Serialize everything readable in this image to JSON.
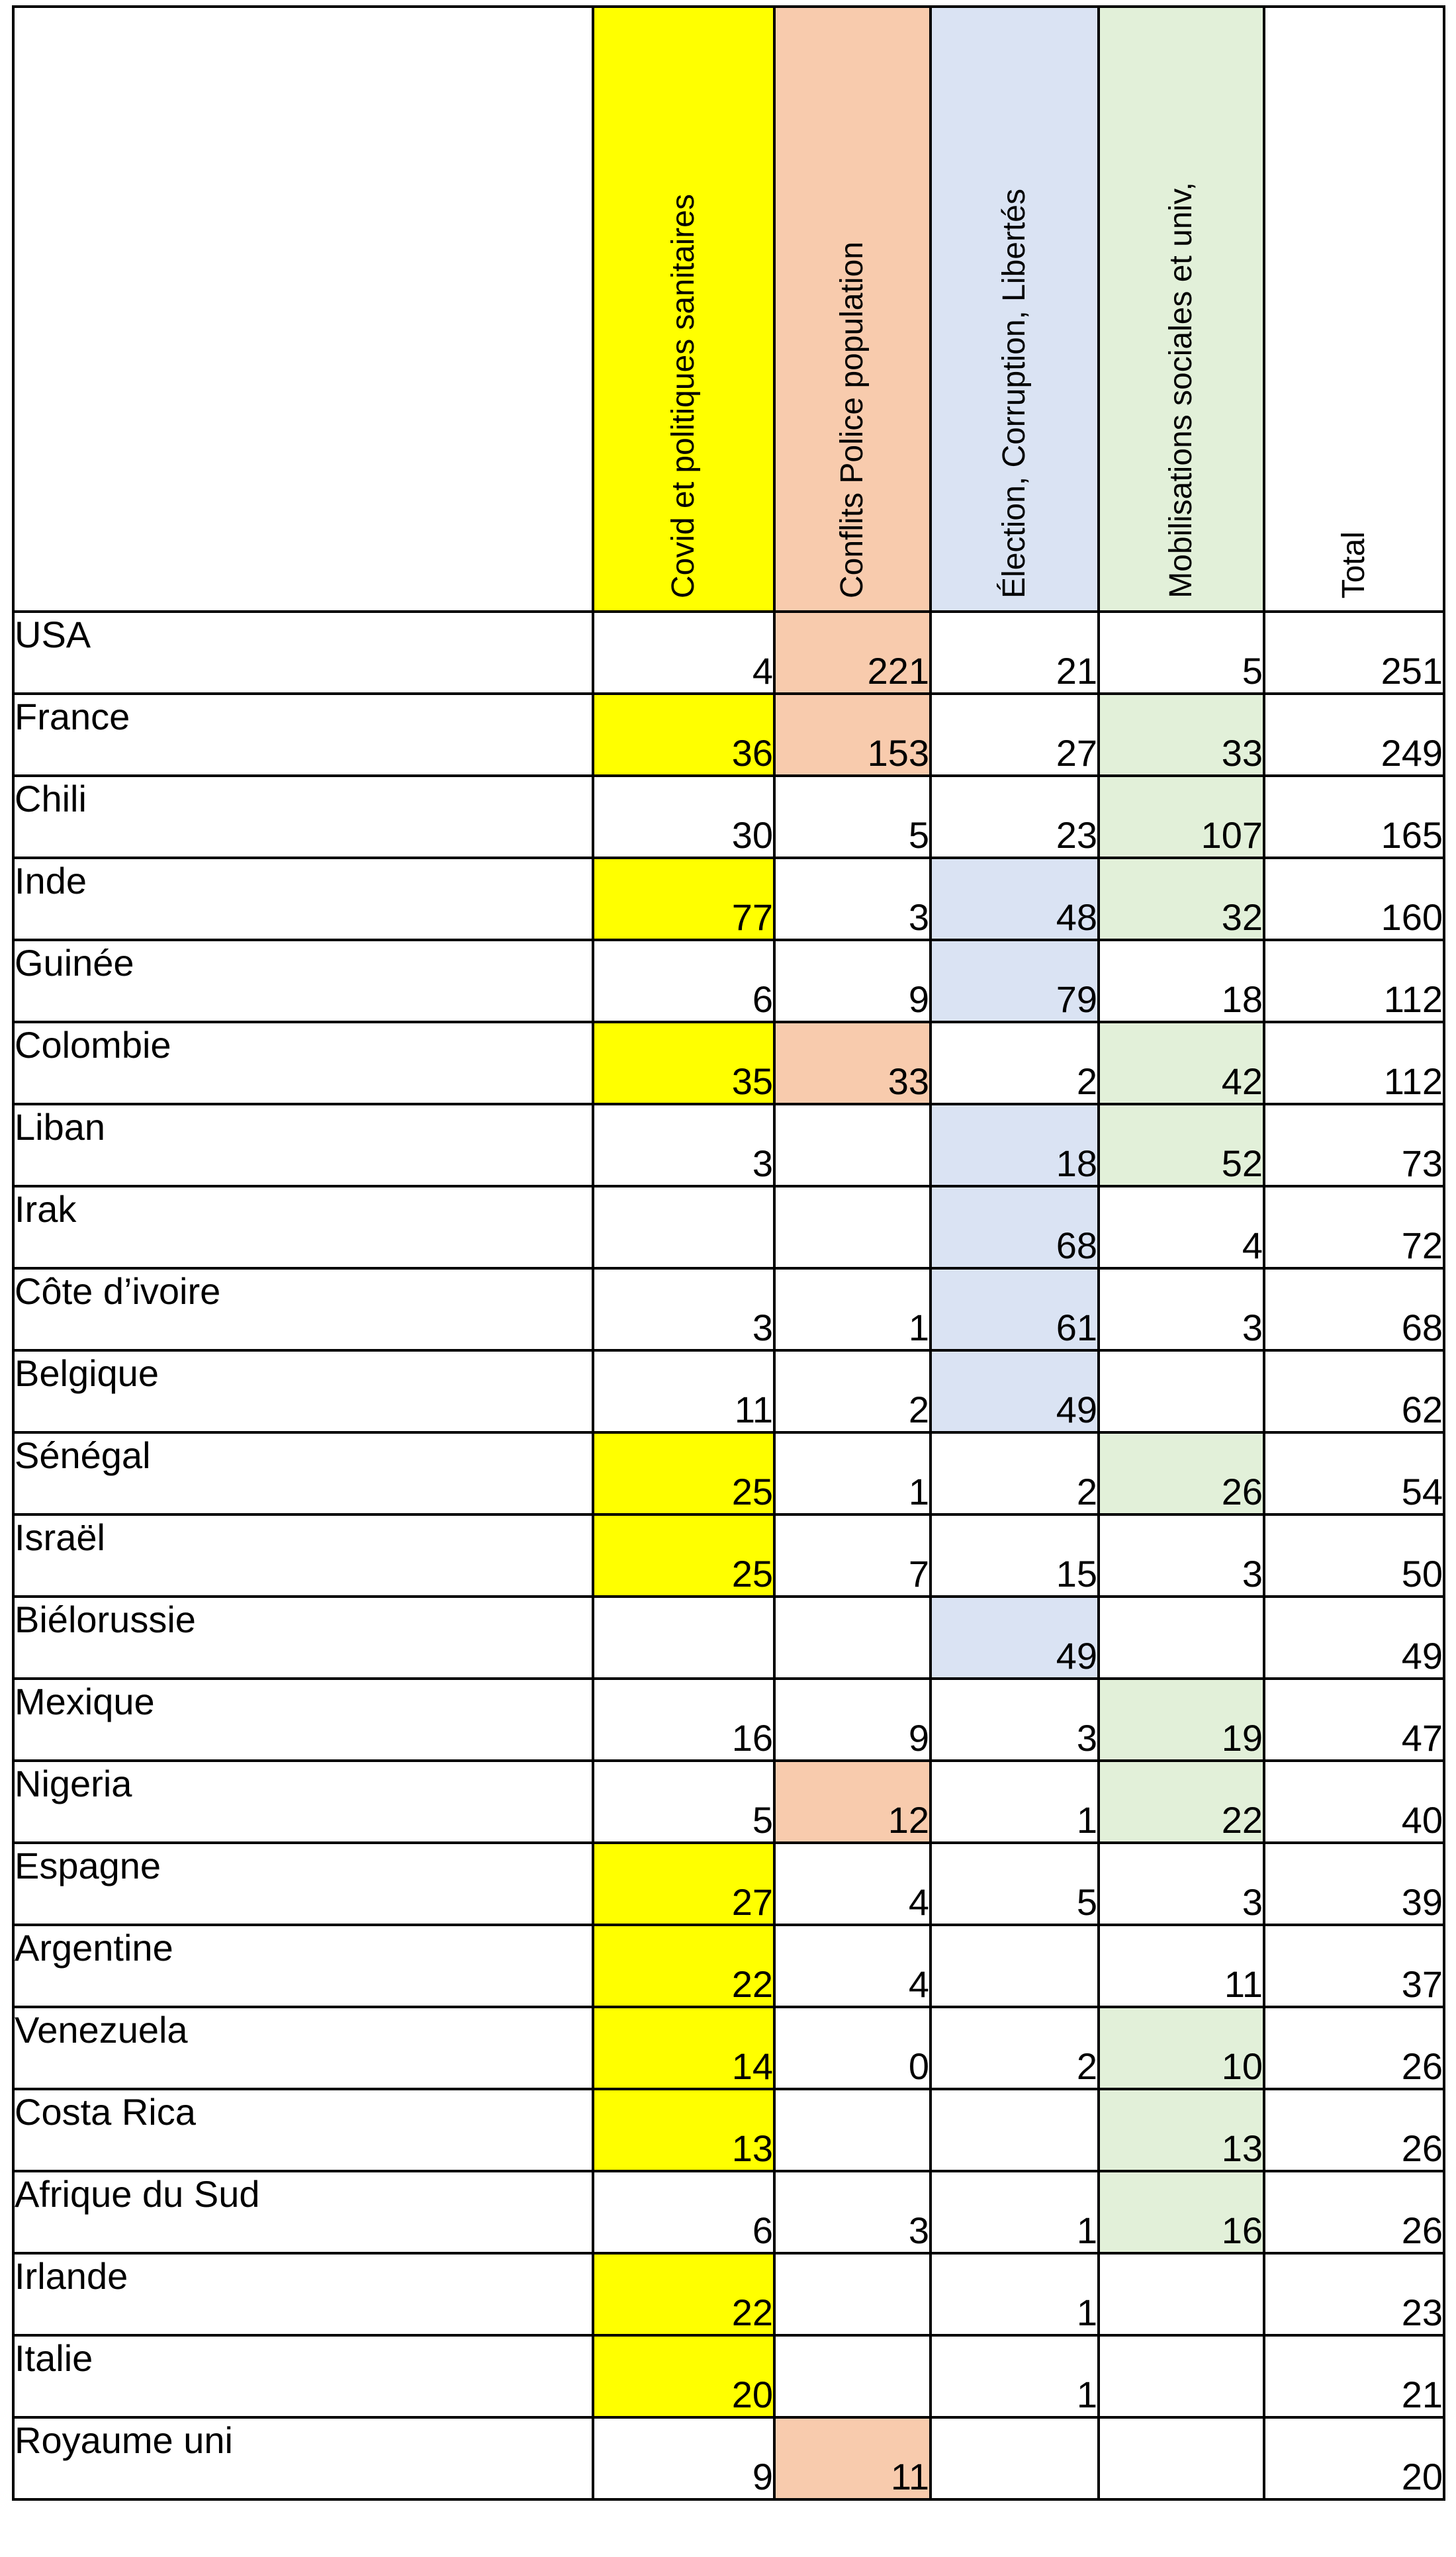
{
  "columns": [
    {
      "label": "Covid et politiques sanitaires",
      "color": "#ffff00"
    },
    {
      "label": "Conflits Police population",
      "color": "#f8cbad"
    },
    {
      "label": "Élection, Corruption, Libertés",
      "color": "#dae3f3"
    },
    {
      "label": "Mobilisations sociales et univ,",
      "color": "#e2f0d9"
    },
    {
      "label": "Total",
      "color": "#ffffff"
    }
  ],
  "rows": [
    {
      "country": "USA",
      "values": [
        "4",
        "221",
        "21",
        "5",
        "251"
      ],
      "highlight": [
        false,
        true,
        false,
        false,
        false
      ]
    },
    {
      "country": "France",
      "values": [
        "36",
        "153",
        "27",
        "33",
        "249"
      ],
      "highlight": [
        true,
        true,
        false,
        true,
        false
      ]
    },
    {
      "country": "Chili",
      "values": [
        "30",
        "5",
        "23",
        "107",
        "165"
      ],
      "highlight": [
        false,
        false,
        false,
        true,
        false
      ]
    },
    {
      "country": "Inde",
      "values": [
        "77",
        "3",
        "48",
        "32",
        "160"
      ],
      "highlight": [
        true,
        false,
        true,
        true,
        false
      ]
    },
    {
      "country": "Guinée",
      "values": [
        "6",
        "9",
        "79",
        "18",
        "112"
      ],
      "highlight": [
        false,
        false,
        true,
        false,
        false
      ]
    },
    {
      "country": "Colombie",
      "values": [
        "35",
        "33",
        "2",
        "42",
        "112"
      ],
      "highlight": [
        true,
        true,
        false,
        true,
        false
      ]
    },
    {
      "country": "Liban",
      "values": [
        "3",
        "",
        "18",
        "52",
        "73"
      ],
      "highlight": [
        false,
        false,
        true,
        true,
        false
      ]
    },
    {
      "country": "Irak",
      "values": [
        "",
        "",
        "68",
        "4",
        "72"
      ],
      "highlight": [
        false,
        false,
        true,
        false,
        false
      ]
    },
    {
      "country": "Côte d’ivoire",
      "values": [
        "3",
        "1",
        "61",
        "3",
        "68"
      ],
      "highlight": [
        false,
        false,
        true,
        false,
        false
      ]
    },
    {
      "country": "Belgique",
      "values": [
        "11",
        "2",
        "49",
        "",
        "62"
      ],
      "highlight": [
        false,
        false,
        true,
        false,
        false
      ]
    },
    {
      "country": "Sénégal",
      "values": [
        "25",
        "1",
        "2",
        "26",
        "54"
      ],
      "highlight": [
        true,
        false,
        false,
        true,
        false
      ]
    },
    {
      "country": "Israël",
      "values": [
        "25",
        "7",
        "15",
        "3",
        "50"
      ],
      "highlight": [
        true,
        false,
        false,
        false,
        false
      ]
    },
    {
      "country": "Biélorussie",
      "values": [
        "",
        "",
        "49",
        "",
        "49"
      ],
      "highlight": [
        false,
        false,
        true,
        false,
        false
      ]
    },
    {
      "country": "Mexique",
      "values": [
        "16",
        "9",
        "3",
        "19",
        "47"
      ],
      "highlight": [
        false,
        false,
        false,
        true,
        false
      ]
    },
    {
      "country": "Nigeria",
      "values": [
        "5",
        "12",
        "1",
        "22",
        "40"
      ],
      "highlight": [
        false,
        true,
        false,
        true,
        false
      ]
    },
    {
      "country": "Espagne",
      "values": [
        "27",
        "4",
        "5",
        "3",
        "39"
      ],
      "highlight": [
        true,
        false,
        false,
        false,
        false
      ]
    },
    {
      "country": "Argentine",
      "values": [
        "22",
        "4",
        "",
        "11",
        "37"
      ],
      "highlight": [
        true,
        false,
        false,
        false,
        false
      ]
    },
    {
      "country": "Venezuela",
      "values": [
        "14",
        "0",
        "2",
        "10",
        "26"
      ],
      "highlight": [
        true,
        false,
        false,
        true,
        false
      ]
    },
    {
      "country": "Costa Rica",
      "values": [
        "13",
        "",
        "",
        "13",
        "26"
      ],
      "highlight": [
        true,
        false,
        false,
        true,
        false
      ]
    },
    {
      "country": "Afrique du Sud",
      "values": [
        "6",
        "3",
        "1",
        "16",
        "26"
      ],
      "highlight": [
        false,
        false,
        false,
        true,
        false
      ]
    },
    {
      "country": "Irlande",
      "values": [
        "22",
        "",
        "1",
        "",
        "23"
      ],
      "highlight": [
        true,
        false,
        false,
        false,
        false
      ]
    },
    {
      "country": "Italie",
      "values": [
        "20",
        "",
        "1",
        "",
        "21"
      ],
      "highlight": [
        true,
        false,
        false,
        false,
        false
      ]
    },
    {
      "country": "Royaume uni",
      "values": [
        "9",
        "11",
        "",
        "",
        "20"
      ],
      "highlight": [
        false,
        true,
        false,
        false,
        false
      ]
    }
  ]
}
